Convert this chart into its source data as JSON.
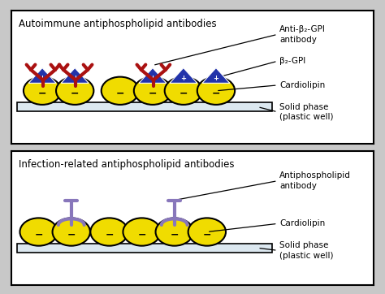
{
  "bg_color": "#c8c8c8",
  "panel_bg": "#ffffff",
  "panel1_title": "Autoimmune antiphospholipid antibodies",
  "panel2_title": "Infection-related antiphospholipid antibodies",
  "cardiolipin_color": "#f0dc00",
  "cardiolipin_outline": "#000000",
  "solid_phase_color": "#dce8f0",
  "solid_phase_outline": "#000000",
  "antibody_color": "#aa1111",
  "b2gpi_color": "#2233aa",
  "infection_antibody_color": "#8877bb",
  "label1a": "Anti-β₂-GPI\nantibody",
  "label1b": "β₂-GPI",
  "label1c": "Cardiolipin",
  "label1d": "Solid phase\n(plastic well)",
  "label2a": "Antiphospholipid\nantibody",
  "label2b": "Cardiolipin",
  "label2c": "Solid phase\n(plastic well)"
}
